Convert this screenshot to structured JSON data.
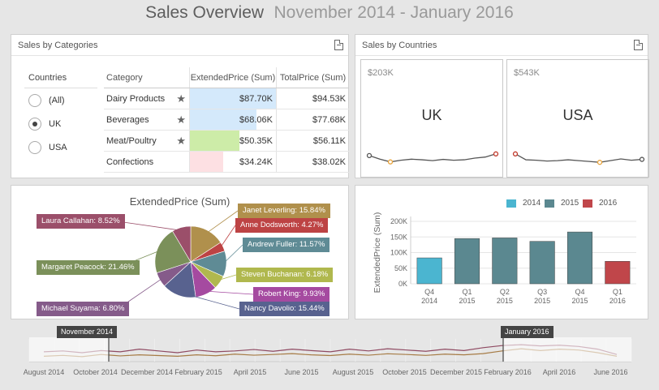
{
  "title": {
    "main": "Sales Overview",
    "range": "November 2014 - January 2016"
  },
  "categories_panel": {
    "title": "Sales by Categories",
    "countries_header": "Countries",
    "countries": [
      {
        "label": "(All)",
        "selected": false
      },
      {
        "label": "UK",
        "selected": true
      },
      {
        "label": "USA",
        "selected": false
      }
    ],
    "columns": [
      "Category",
      "ExtendedPrice (Sum)",
      "TotalPrice (Sum)"
    ],
    "rows": [
      {
        "category": "Dairy Products",
        "starred": true,
        "extended": "$87.70K",
        "extended_value": 87.7,
        "total": "$94.53K",
        "bar_color": "#d4e9fb"
      },
      {
        "category": "Beverages",
        "starred": true,
        "extended": "$68.06K",
        "extended_value": 68.06,
        "total": "$77.68K",
        "bar_color": "#d4e9fb"
      },
      {
        "category": "Meat/Poultry",
        "starred": true,
        "extended": "$50.35K",
        "extended_value": 50.35,
        "total": "$56.11K",
        "bar_color": "#cdeca8"
      },
      {
        "category": "Confections",
        "starred": false,
        "extended": "$34.24K",
        "extended_value": 34.24,
        "total": "$38.02K",
        "bar_color": "#fde0e3"
      }
    ],
    "star_glyph": "★"
  },
  "countries_panel": {
    "title": "Sales by Countries",
    "cards": [
      {
        "value": "$203K",
        "name": "UK",
        "spark": [
          0.62,
          0.45,
          0.32,
          0.4,
          0.45,
          0.42,
          0.38,
          0.44,
          0.4,
          0.42,
          0.5,
          0.55,
          0.7
        ],
        "min_index": 2,
        "max_index": 12
      },
      {
        "value": "$543K",
        "name": "USA",
        "spark": [
          0.7,
          0.42,
          0.4,
          0.36,
          0.38,
          0.42,
          0.38,
          0.34,
          0.3,
          0.38,
          0.46,
          0.4,
          0.44
        ],
        "min_index": 8,
        "max_index": 0
      }
    ]
  },
  "pie_panel": {
    "chart_data": {
      "type": "pie",
      "title": "ExtendedPrice (Sum)",
      "slices": [
        {
          "name": "Janet Leverling",
          "label": "Janet Leverling: 15.84%",
          "value": 15.84,
          "color": "#b0904c"
        },
        {
          "name": "Anne Dodsworth",
          "label": "Anne Dodsworth: 4.27%",
          "value": 4.27,
          "color": "#bd4344"
        },
        {
          "name": "Andrew Fuller",
          "label": "Andrew Fuller: 11.57%",
          "value": 11.57,
          "color": "#5f8b95"
        },
        {
          "name": "Steven Buchanan",
          "label": "Steven Buchanan: 6.18%",
          "value": 6.18,
          "color": "#b0b84e"
        },
        {
          "name": "Robert King",
          "label": "Robert King: 9.93%",
          "value": 9.93,
          "color": "#a54aa0"
        },
        {
          "name": "Nancy Davolio",
          "label": "Nancy Davolio: 15.44%",
          "value": 15.44,
          "color": "#58628f"
        },
        {
          "name": "Michael Suyama",
          "label": "Michael Suyama: 6.80%",
          "value": 6.8,
          "color": "#855b8a"
        },
        {
          "name": "Margaret Peacock",
          "label": "Margaret Peacock: 21.46%",
          "value": 21.46,
          "color": "#7b905a"
        },
        {
          "name": "Laura Callahan",
          "label": "Laura Callahan: 8.52%",
          "value": 8.52,
          "color": "#9b4f6a"
        }
      ]
    }
  },
  "bar_panel": {
    "chart_data": {
      "type": "bar",
      "ylabel": "ExtendedPrice (Sum)",
      "ylim": [
        0,
        200000
      ],
      "yticks": [
        "0K",
        "50K",
        "100K",
        "150K",
        "200K"
      ],
      "categories": [
        {
          "q": "Q4",
          "y": "2014"
        },
        {
          "q": "Q1",
          "y": "2015"
        },
        {
          "q": "Q2",
          "y": "2015"
        },
        {
          "q": "Q3",
          "y": "2015"
        },
        {
          "q": "Q4",
          "y": "2015"
        },
        {
          "q": "Q1",
          "y": "2016"
        }
      ],
      "values": [
        83000,
        145000,
        147000,
        136000,
        166000,
        72000
      ],
      "series_index": [
        0,
        1,
        1,
        1,
        1,
        2
      ],
      "legend": [
        {
          "name": "2014",
          "color": "#4bb5d0"
        },
        {
          "name": "2015",
          "color": "#5b8890"
        },
        {
          "name": "2016",
          "color": "#c0464a"
        }
      ]
    }
  },
  "range_filter": {
    "start_label": "November 2014",
    "end_label": "January 2016",
    "axis_labels": [
      "August 2014",
      "October 2014",
      "December 2014",
      "February 2015",
      "April 2015",
      "June 2015",
      "August 2015",
      "October 2015",
      "December 2015",
      "February 2016",
      "April 2016",
      "June 2016"
    ],
    "series1": [
      0.55,
      0.6,
      0.5,
      0.62,
      0.55,
      0.7,
      0.6,
      0.5,
      0.65,
      0.55,
      0.6,
      0.68,
      0.58,
      0.7,
      0.62,
      0.55,
      0.7,
      0.6,
      0.72,
      0.65,
      0.58,
      0.7,
      0.62,
      0.78,
      0.9,
      0.95,
      0.88,
      0.92,
      0.85,
      0.7,
      0.4
    ],
    "series2": [
      0.3,
      0.35,
      0.28,
      0.4,
      0.32,
      0.38,
      0.34,
      0.3,
      0.38,
      0.33,
      0.42,
      0.36,
      0.4,
      0.45,
      0.38,
      0.34,
      0.42,
      0.36,
      0.44,
      0.4,
      0.35,
      0.42,
      0.38,
      0.45,
      0.6,
      0.72,
      0.62,
      0.7,
      0.65,
      0.5,
      0.3
    ]
  }
}
